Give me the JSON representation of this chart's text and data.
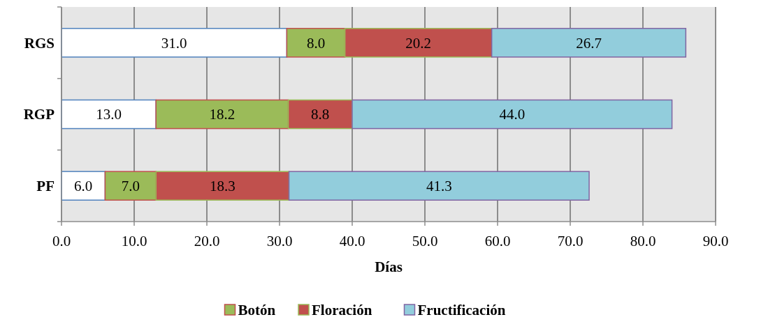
{
  "chart_data": {
    "type": "bar",
    "orientation": "horizontal",
    "stacked": true,
    "categories": [
      "RGS",
      "RGP",
      "PF"
    ],
    "series": [
      {
        "color": "#ffffff",
        "values": [
          31.0,
          13.0,
          6.0
        ],
        "value_labels": [
          "31.0",
          "13.0",
          "6.0"
        ]
      },
      {
        "name": "Botón",
        "color": "#9bbb59",
        "values": [
          8.0,
          18.2,
          7.0
        ],
        "value_labels": [
          "8.0",
          "18.2",
          "7.0"
        ]
      },
      {
        "name": "Floración",
        "color": "#c0504d",
        "values": [
          20.2,
          8.8,
          18.3
        ],
        "value_labels": [
          "20.2",
          "8.8",
          "18.3"
        ]
      },
      {
        "name": "Fructificación",
        "color": "#92cddc",
        "values": [
          26.7,
          44.0,
          41.3
        ],
        "value_labels": [
          "26.7",
          "44.0",
          "41.3"
        ]
      }
    ],
    "xlim": [
      0,
      90
    ],
    "xticks": [
      {
        "value": 0,
        "label": "0.0"
      },
      {
        "value": 10,
        "label": "10.0"
      },
      {
        "value": 20,
        "label": "20.0"
      },
      {
        "value": 30,
        "label": "30.0"
      },
      {
        "value": 40,
        "label": "40.0"
      },
      {
        "value": 50,
        "label": "50.0"
      },
      {
        "value": 60,
        "label": "60.0"
      },
      {
        "value": 70,
        "label": "70.0"
      },
      {
        "value": 80,
        "label": "80.0"
      },
      {
        "value": 90,
        "label": "90.0"
      }
    ],
    "xlabel": "Días",
    "grid": "x",
    "legend": "bottom"
  }
}
